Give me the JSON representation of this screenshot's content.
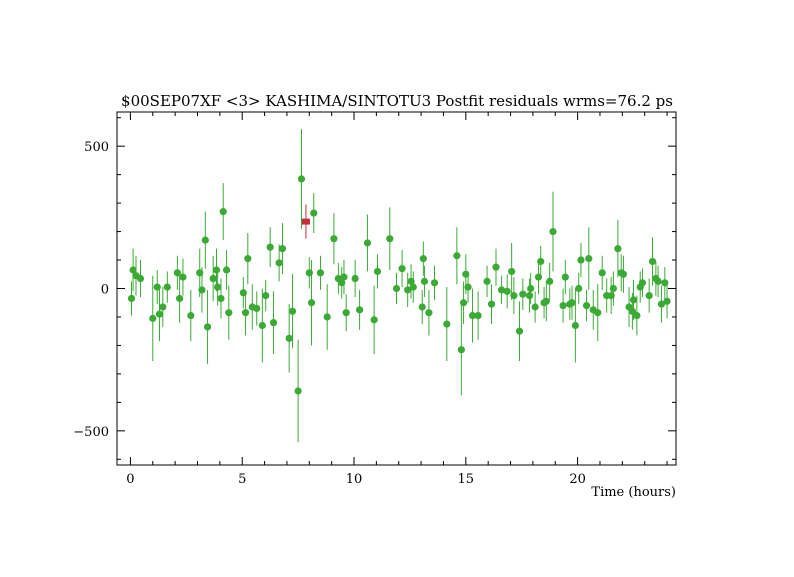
{
  "chart_data": {
    "type": "scatter",
    "title": "$00SEP07XF <3> KASHIMA/SINTOTU3 Postfit residuals wrms=76.2  ps",
    "xlabel": "Time (hours)",
    "ylabel": "",
    "xlim": [
      -0.6,
      24.4
    ],
    "ylim": [
      -620,
      620
    ],
    "x_ticks": [
      0,
      5,
      10,
      15,
      20
    ],
    "x_tick_labels": [
      "0",
      "5",
      "10",
      "15",
      "20"
    ],
    "y_ticks": [
      -500,
      0,
      500
    ],
    "y_tick_labels": [
      "−500",
      "0",
      "500"
    ],
    "grid": false,
    "colors": {
      "good": "#3aaa35",
      "flagged": "#c0303a",
      "axis": "#000000"
    },
    "series": [
      {
        "color": "#3aaa35",
        "points": [
          [
            0.05,
            -35,
            60
          ],
          [
            0.12,
            65,
            75
          ],
          [
            0.25,
            45,
            70
          ],
          [
            0.45,
            35,
            65
          ],
          [
            1.0,
            -105,
            150
          ],
          [
            1.2,
            5,
            60
          ],
          [
            1.3,
            -90,
            95
          ],
          [
            1.45,
            -65,
            70
          ],
          [
            1.65,
            5,
            55
          ],
          [
            2.1,
            55,
            60
          ],
          [
            2.2,
            -35,
            85
          ],
          [
            2.35,
            40,
            65
          ],
          [
            2.7,
            -95,
            90
          ],
          [
            3.1,
            55,
            85
          ],
          [
            3.2,
            -5,
            80
          ],
          [
            3.35,
            170,
            100
          ],
          [
            3.45,
            -135,
            130
          ],
          [
            3.7,
            35,
            80
          ],
          [
            3.85,
            65,
            75
          ],
          [
            3.9,
            5,
            65
          ],
          [
            4.05,
            -35,
            70
          ],
          [
            4.15,
            270,
            100
          ],
          [
            4.3,
            65,
            70
          ],
          [
            4.4,
            -85,
            95
          ],
          [
            5.05,
            -15,
            55
          ],
          [
            5.15,
            -85,
            80
          ],
          [
            5.25,
            105,
            90
          ],
          [
            5.45,
            -65,
            80
          ],
          [
            5.65,
            -70,
            60
          ],
          [
            5.9,
            -130,
            130
          ],
          [
            6.05,
            -25,
            55
          ],
          [
            6.25,
            145,
            70
          ],
          [
            6.4,
            -120,
            110
          ],
          [
            6.65,
            90,
            65
          ],
          [
            6.8,
            140,
            90
          ],
          [
            7.1,
            -175,
            120
          ],
          [
            7.25,
            -80,
            130
          ],
          [
            7.5,
            -360,
            180
          ],
          [
            7.65,
            385,
            175
          ],
          [
            8.0,
            55,
            55
          ],
          [
            8.1,
            -50,
            150
          ],
          [
            8.2,
            265,
            70
          ],
          [
            8.5,
            55,
            60
          ],
          [
            8.8,
            -100,
            115
          ],
          [
            9.1,
            175,
            90
          ],
          [
            9.3,
            35,
            55
          ],
          [
            9.45,
            20,
            55
          ],
          [
            9.55,
            40,
            60
          ],
          [
            9.65,
            -85,
            65
          ],
          [
            10.05,
            35,
            65
          ],
          [
            10.25,
            -75,
            70
          ],
          [
            10.6,
            160,
            100
          ],
          [
            10.9,
            -110,
            120
          ],
          [
            11.05,
            60,
            60
          ],
          [
            11.6,
            175,
            110
          ],
          [
            11.9,
            0,
            55
          ],
          [
            12.15,
            70,
            65
          ],
          [
            12.4,
            -5,
            60
          ],
          [
            12.55,
            25,
            60
          ],
          [
            12.65,
            5,
            55
          ],
          [
            13.05,
            -65,
            60
          ],
          [
            13.1,
            105,
            60
          ],
          [
            13.15,
            25,
            55
          ],
          [
            13.35,
            -85,
            80
          ],
          [
            13.6,
            20,
            60
          ],
          [
            14.15,
            -125,
            130
          ],
          [
            14.6,
            115,
            100
          ],
          [
            14.8,
            -215,
            160
          ],
          [
            14.9,
            -50,
            75
          ],
          [
            15.0,
            50,
            70
          ],
          [
            15.1,
            5,
            55
          ],
          [
            15.3,
            -95,
            95
          ],
          [
            15.55,
            -95,
            85
          ],
          [
            15.95,
            25,
            55
          ],
          [
            16.15,
            -55,
            70
          ],
          [
            16.35,
            75,
            65
          ],
          [
            16.6,
            -5,
            50
          ],
          [
            16.85,
            -10,
            60
          ],
          [
            17.05,
            60,
            100
          ],
          [
            17.15,
            -25,
            65
          ],
          [
            17.4,
            -150,
            105
          ],
          [
            17.55,
            -20,
            55
          ],
          [
            17.85,
            -25,
            60
          ],
          [
            17.9,
            0,
            55
          ],
          [
            18.1,
            -65,
            55
          ],
          [
            18.25,
            40,
            60
          ],
          [
            18.35,
            95,
            55
          ],
          [
            18.5,
            -50,
            55
          ],
          [
            18.6,
            -45,
            70
          ],
          [
            18.75,
            25,
            65
          ],
          [
            18.9,
            200,
            140
          ],
          [
            19.35,
            -60,
            60
          ],
          [
            19.45,
            40,
            60
          ],
          [
            19.65,
            -55,
            55
          ],
          [
            19.75,
            -50,
            60
          ],
          [
            19.9,
            -130,
            130
          ],
          [
            20.05,
            0,
            55
          ],
          [
            20.15,
            100,
            60
          ],
          [
            20.4,
            -60,
            55
          ],
          [
            20.5,
            105,
            110
          ],
          [
            20.7,
            -75,
            70
          ],
          [
            20.9,
            -85,
            100
          ],
          [
            21.1,
            55,
            60
          ],
          [
            21.3,
            -25,
            60
          ],
          [
            21.5,
            -25,
            65
          ],
          [
            21.6,
            0,
            60
          ],
          [
            21.8,
            140,
            100
          ],
          [
            21.95,
            55,
            65
          ],
          [
            22.05,
            50,
            65
          ],
          [
            22.3,
            -65,
            70
          ],
          [
            22.45,
            -80,
            65
          ],
          [
            22.5,
            -40,
            70
          ],
          [
            22.65,
            -95,
            70
          ],
          [
            22.8,
            5,
            55
          ],
          [
            22.9,
            20,
            50
          ],
          [
            23.2,
            -25,
            60
          ],
          [
            23.35,
            95,
            85
          ],
          [
            23.5,
            35,
            60
          ],
          [
            23.6,
            25,
            55
          ],
          [
            23.75,
            -55,
            65
          ],
          [
            23.9,
            20,
            55
          ],
          [
            24.0,
            -45,
            60
          ]
        ]
      },
      {
        "color": "#c0303a",
        "points": [
          [
            7.85,
            235,
            60
          ]
        ]
      }
    ]
  }
}
